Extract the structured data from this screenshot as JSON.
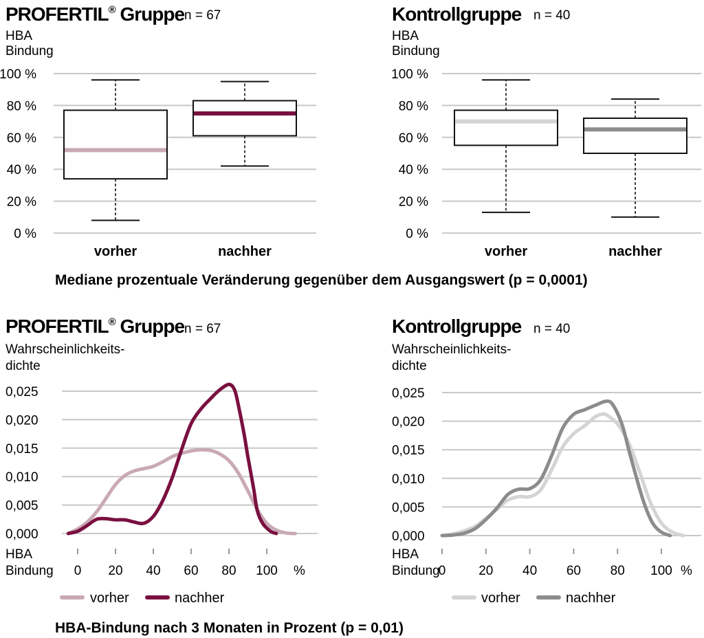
{
  "caption_top": "Mediane prozentuale Veränderung gegenüber dem Ausgangswert (p = 0,0001)",
  "caption_bottom": "HBA-Bindung nach 3 Monaten in Prozent (p = 0,01)",
  "colors": {
    "profertil_dark": "#7a1040",
    "profertil_light": "#c9a9b5",
    "kontroll_dark": "#8c8c8c",
    "kontroll_light": "#d4d4d4",
    "grid": "#c8c8c8"
  },
  "chart_data": [
    {
      "type": "box",
      "title": "PROFERTIL",
      "title_sup": "®",
      "title_suffix": " Gruppe",
      "n_label": "n = 67",
      "ylabel": [
        "HBA",
        "Bindung"
      ],
      "ylim": [
        0,
        100
      ],
      "yticks": [
        "0 %",
        "20 %",
        "40 %",
        "60 %",
        "80 %",
        "100 %"
      ],
      "categories": [
        "vorher",
        "nachher"
      ],
      "boxes": [
        {
          "name": "vorher",
          "min": 8,
          "q1": 34,
          "median": 52,
          "q3": 77,
          "max": 96
        },
        {
          "name": "nachher",
          "min": 42,
          "q1": 61,
          "median": 75,
          "q3": 83,
          "max": 95
        }
      ]
    },
    {
      "type": "box",
      "title": "Kontrollgruppe",
      "n_label": "n = 40",
      "ylabel": [
        "HBA",
        "Bindung"
      ],
      "ylim": [
        0,
        100
      ],
      "yticks": [
        "0 %",
        "20 %",
        "40 %",
        "60 %",
        "80 %",
        "100 %"
      ],
      "categories": [
        "vorher",
        "nachher"
      ],
      "boxes": [
        {
          "name": "vorher",
          "min": 13,
          "q1": 55,
          "median": 70,
          "q3": 77,
          "max": 96
        },
        {
          "name": "nachher",
          "min": 10,
          "q1": 50,
          "median": 65,
          "q3": 72,
          "max": 84
        }
      ]
    },
    {
      "type": "line",
      "title": "PROFERTIL",
      "title_sup": "®",
      "title_suffix": " Gruppe",
      "n_label": "n = 67",
      "ylabel": [
        "Wahrscheinlichkeits-",
        "dichte"
      ],
      "xlabel": [
        "HBA",
        "Bindung"
      ],
      "x_unit": "%",
      "ylim": [
        0,
        0.025
      ],
      "yticks": [
        "0,000",
        "0,005",
        "0,010",
        "0,015",
        "0,020",
        "0,025"
      ],
      "xticks": [
        "0",
        "20",
        "40",
        "60",
        "80",
        "100"
      ],
      "series": [
        {
          "name": "vorher",
          "points": [
            [
              -5,
              0
            ],
            [
              0,
              0.0008
            ],
            [
              5,
              0.002
            ],
            [
              10,
              0.0038
            ],
            [
              15,
              0.0062
            ],
            [
              20,
              0.0086
            ],
            [
              25,
              0.0102
            ],
            [
              30,
              0.011
            ],
            [
              35,
              0.0114
            ],
            [
              40,
              0.0118
            ],
            [
              45,
              0.0126
            ],
            [
              50,
              0.0135
            ],
            [
              55,
              0.0141
            ],
            [
              60,
              0.0145
            ],
            [
              65,
              0.0147
            ],
            [
              70,
              0.0146
            ],
            [
              75,
              0.014
            ],
            [
              80,
              0.0128
            ],
            [
              85,
              0.0106
            ],
            [
              90,
              0.0075
            ],
            [
              95,
              0.0042
            ],
            [
              100,
              0.0018
            ],
            [
              105,
              0.0006
            ],
            [
              110,
              0.0001
            ],
            [
              115,
              0
            ]
          ]
        },
        {
          "name": "nachher",
          "points": [
            [
              -5,
              0
            ],
            [
              0,
              0.0004
            ],
            [
              5,
              0.0014
            ],
            [
              10,
              0.0025
            ],
            [
              15,
              0.0026
            ],
            [
              20,
              0.0024
            ],
            [
              25,
              0.0024
            ],
            [
              30,
              0.002
            ],
            [
              35,
              0.0018
            ],
            [
              40,
              0.003
            ],
            [
              45,
              0.0058
            ],
            [
              50,
              0.0098
            ],
            [
              55,
              0.0148
            ],
            [
              60,
              0.0193
            ],
            [
              65,
              0.0218
            ],
            [
              70,
              0.0236
            ],
            [
              75,
              0.0252
            ],
            [
              80,
              0.0262
            ],
            [
              83,
              0.0252
            ],
            [
              85,
              0.0225
            ],
            [
              88,
              0.0175
            ],
            [
              90,
              0.0135
            ],
            [
              93,
              0.008
            ],
            [
              95,
              0.004
            ],
            [
              98,
              0.0017
            ],
            [
              102,
              0.0004
            ],
            [
              105,
              0
            ]
          ]
        }
      ]
    },
    {
      "type": "line",
      "title": "Kontrollgruppe",
      "n_label": "n = 40",
      "ylabel": [
        "Wahrscheinlichkeits-",
        "dichte"
      ],
      "xlabel": [
        "HBA",
        "Bindung"
      ],
      "x_unit": "%",
      "ylim": [
        0,
        0.025
      ],
      "yticks": [
        "0,000",
        "0,005",
        "0,010",
        "0,015",
        "0,020",
        "0,025"
      ],
      "xticks": [
        "0",
        "20",
        "40",
        "60",
        "80",
        "100"
      ],
      "series": [
        {
          "name": "vorher",
          "points": [
            [
              0,
              0
            ],
            [
              5,
              0.0003
            ],
            [
              10,
              0.0008
            ],
            [
              15,
              0.0016
            ],
            [
              20,
              0.003
            ],
            [
              25,
              0.0046
            ],
            [
              30,
              0.0062
            ],
            [
              35,
              0.0068
            ],
            [
              40,
              0.0068
            ],
            [
              45,
              0.008
            ],
            [
              50,
              0.0115
            ],
            [
              55,
              0.0155
            ],
            [
              60,
              0.0178
            ],
            [
              65,
              0.0192
            ],
            [
              70,
              0.0208
            ],
            [
              73,
              0.0212
            ],
            [
              75,
              0.0211
            ],
            [
              80,
              0.0195
            ],
            [
              85,
              0.0163
            ],
            [
              90,
              0.0112
            ],
            [
              95,
              0.0058
            ],
            [
              100,
              0.0022
            ],
            [
              105,
              0.0006
            ],
            [
              110,
              0
            ]
          ]
        },
        {
          "name": "nachher",
          "points": [
            [
              0,
              0
            ],
            [
              5,
              0.0001
            ],
            [
              10,
              0.0004
            ],
            [
              15,
              0.0012
            ],
            [
              20,
              0.0028
            ],
            [
              25,
              0.0048
            ],
            [
              30,
              0.0072
            ],
            [
              35,
              0.0081
            ],
            [
              40,
              0.0082
            ],
            [
              45,
              0.0098
            ],
            [
              50,
              0.014
            ],
            [
              55,
              0.0188
            ],
            [
              60,
              0.0212
            ],
            [
              65,
              0.022
            ],
            [
              70,
              0.0228
            ],
            [
              75,
              0.0235
            ],
            [
              78,
              0.0228
            ],
            [
              82,
              0.0195
            ],
            [
              85,
              0.0152
            ],
            [
              88,
              0.011
            ],
            [
              92,
              0.0058
            ],
            [
              96,
              0.0022
            ],
            [
              100,
              0.0006
            ],
            [
              104,
              0
            ]
          ]
        }
      ]
    }
  ]
}
